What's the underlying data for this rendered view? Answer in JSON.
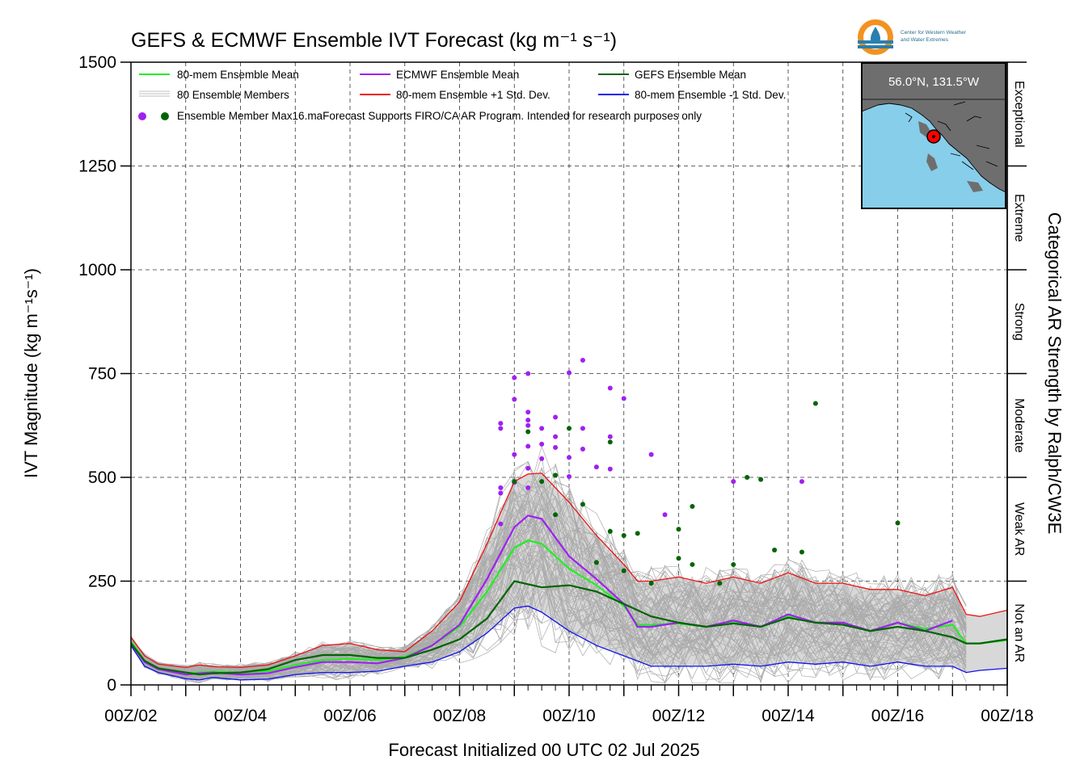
{
  "title": "GEFS & ECMWF Ensemble IVT Forecast (kg m⁻¹ s⁻¹)",
  "colors": {
    "mean80": "#22ee22",
    "ecmwf": "#a020f0",
    "gefs": "#006400",
    "plus1sd": "#ee1111",
    "minus1sd": "#1111ee",
    "members": "#aaaaaa",
    "map_ocean": "#87ceeb",
    "map_land": "#6e6e6e",
    "marker": "#ff0000"
  },
  "logo": {
    "icon": "water-drop-logo-icon",
    "line1": "Center for Western Weather",
    "line2": "and Water Extremes"
  },
  "inset_map": {
    "label": "56.0°N, 131.5°W",
    "marker_icon": "location-marker-icon"
  },
  "right_axis_label": "Categorical AR Strength by Ralph/CW3E",
  "categories": [
    {
      "label": "Not an AR",
      "from": 0,
      "to": 250
    },
    {
      "label": "Weak AR",
      "from": 250,
      "to": 500
    },
    {
      "label": "Moderate",
      "from": 500,
      "to": 750
    },
    {
      "label": "Strong",
      "from": 750,
      "to": 1000
    },
    {
      "label": "Extreme",
      "from": 1000,
      "to": 1250
    },
    {
      "label": "Exceptional",
      "from": 1250,
      "to": 1500
    }
  ],
  "legend": {
    "mean80": "80-mem Ensemble Mean",
    "ecmwf": "ECMWF Ensemble Mean",
    "gefs": "GEFS Ensemble Mean",
    "members": "80 Ensemble Members",
    "plus1sd": "80-mem Ensemble +1 Std. Dev.",
    "minus1sd": "80-mem Ensemble -1 Std. Dev.",
    "max": "Ensemble Member Max16.maForecast Supports FIRO/CA AR Program. Intended for research purposes only"
  },
  "chart_data": {
    "type": "line",
    "title": "GEFS & ECMWF Ensemble IVT Forecast (kg m⁻¹ s⁻¹)",
    "xlabel": "Forecast Initialized 00 UTC 02 Jul 2025",
    "ylabel": "IVT Magnitude (kg m⁻¹s⁻¹)",
    "xlim_days": [
      2,
      18
    ],
    "ylim": [
      0,
      1500
    ],
    "yticks": [
      0,
      250,
      500,
      750,
      1000,
      1250,
      1500
    ],
    "xtick_labels": [
      "00Z/02",
      "00Z/04",
      "00Z/06",
      "00Z/08",
      "00Z/10",
      "00Z/12",
      "00Z/14",
      "00Z/16",
      "00Z/18"
    ],
    "grid": true,
    "legend_position": "top-left",
    "series": [
      {
        "name": "80-mem Ensemble Mean",
        "points": [
          [
            2.0,
            105
          ],
          [
            2.25,
            58
          ],
          [
            2.5,
            40
          ],
          [
            3.0,
            28
          ],
          [
            3.25,
            30
          ],
          [
            3.5,
            32
          ],
          [
            4.0,
            30
          ],
          [
            4.5,
            33
          ],
          [
            5.0,
            48
          ],
          [
            5.5,
            60
          ],
          [
            6.0,
            63
          ],
          [
            6.5,
            60
          ],
          [
            7.0,
            68
          ],
          [
            7.5,
            95
          ],
          [
            8.0,
            140
          ],
          [
            8.5,
            225
          ],
          [
            9.0,
            330
          ],
          [
            9.25,
            348
          ],
          [
            9.5,
            340
          ],
          [
            10.0,
            280
          ],
          [
            10.5,
            240
          ],
          [
            11.0,
            190
          ],
          [
            11.25,
            145
          ],
          [
            11.5,
            145
          ],
          [
            12.0,
            148
          ],
          [
            12.5,
            140
          ],
          [
            13.0,
            150
          ],
          [
            13.5,
            140
          ],
          [
            14.0,
            165
          ],
          [
            14.5,
            150
          ],
          [
            15.0,
            145
          ],
          [
            15.5,
            130
          ],
          [
            16.0,
            150
          ],
          [
            16.5,
            135
          ],
          [
            17.0,
            145
          ],
          [
            17.25,
            100
          ],
          [
            17.5,
            100
          ],
          [
            18.0,
            108
          ]
        ]
      },
      {
        "name": "ECMWF Ensemble Mean",
        "points": [
          [
            2.0,
            100
          ],
          [
            2.25,
            55
          ],
          [
            2.5,
            38
          ],
          [
            3.0,
            25
          ],
          [
            3.25,
            28
          ],
          [
            3.5,
            30
          ],
          [
            4.0,
            25
          ],
          [
            4.5,
            28
          ],
          [
            5.0,
            43
          ],
          [
            5.5,
            55
          ],
          [
            6.0,
            55
          ],
          [
            6.5,
            52
          ],
          [
            7.0,
            65
          ],
          [
            7.5,
            95
          ],
          [
            8.0,
            145
          ],
          [
            8.5,
            255
          ],
          [
            9.0,
            380
          ],
          [
            9.25,
            408
          ],
          [
            9.5,
            400
          ],
          [
            10.0,
            310
          ],
          [
            10.5,
            255
          ],
          [
            11.0,
            195
          ],
          [
            11.25,
            140
          ],
          [
            11.5,
            140
          ],
          [
            12.0,
            150
          ],
          [
            12.5,
            140
          ],
          [
            13.0,
            155
          ],
          [
            13.5,
            140
          ],
          [
            14.0,
            170
          ],
          [
            14.5,
            150
          ],
          [
            15.0,
            150
          ],
          [
            15.5,
            130
          ],
          [
            16.0,
            150
          ],
          [
            16.5,
            130
          ],
          [
            17.0,
            155
          ]
        ]
      },
      {
        "name": "GEFS Ensemble Mean",
        "points": [
          [
            2.0,
            100
          ],
          [
            2.25,
            58
          ],
          [
            2.5,
            40
          ],
          [
            3.0,
            30
          ],
          [
            3.25,
            25
          ],
          [
            3.5,
            28
          ],
          [
            4.0,
            30
          ],
          [
            4.5,
            38
          ],
          [
            5.0,
            60
          ],
          [
            5.5,
            72
          ],
          [
            6.0,
            72
          ],
          [
            6.5,
            65
          ],
          [
            7.0,
            65
          ],
          [
            7.5,
            85
          ],
          [
            8.0,
            110
          ],
          [
            8.5,
            160
          ],
          [
            9.0,
            250
          ],
          [
            9.5,
            235
          ],
          [
            10.0,
            240
          ],
          [
            10.5,
            225
          ],
          [
            11.0,
            195
          ],
          [
            11.5,
            165
          ],
          [
            12.0,
            150
          ],
          [
            12.5,
            140
          ],
          [
            13.0,
            148
          ],
          [
            13.5,
            140
          ],
          [
            14.0,
            162
          ],
          [
            14.5,
            150
          ],
          [
            15.0,
            145
          ],
          [
            15.5,
            130
          ],
          [
            16.0,
            140
          ],
          [
            16.5,
            130
          ],
          [
            17.0,
            115
          ],
          [
            17.25,
            100
          ],
          [
            17.5,
            100
          ],
          [
            18.0,
            110
          ]
        ]
      },
      {
        "name": "80-mem Ensemble +1 Std. Dev.",
        "points": [
          [
            2.0,
            115
          ],
          [
            2.25,
            70
          ],
          [
            2.5,
            50
          ],
          [
            3.0,
            42
          ],
          [
            3.25,
            48
          ],
          [
            3.5,
            44
          ],
          [
            4.0,
            42
          ],
          [
            4.5,
            48
          ],
          [
            5.0,
            70
          ],
          [
            5.5,
            95
          ],
          [
            6.0,
            100
          ],
          [
            6.5,
            85
          ],
          [
            7.0,
            80
          ],
          [
            7.5,
            130
          ],
          [
            8.0,
            200
          ],
          [
            8.5,
            340
          ],
          [
            9.0,
            490
          ],
          [
            9.25,
            508
          ],
          [
            9.5,
            510
          ],
          [
            10.0,
            440
          ],
          [
            10.5,
            360
          ],
          [
            11.0,
            290
          ],
          [
            11.25,
            250
          ],
          [
            11.5,
            250
          ],
          [
            12.0,
            260
          ],
          [
            12.5,
            245
          ],
          [
            13.0,
            260
          ],
          [
            13.5,
            245
          ],
          [
            14.0,
            270
          ],
          [
            14.5,
            245
          ],
          [
            15.0,
            245
          ],
          [
            15.5,
            230
          ],
          [
            16.0,
            230
          ],
          [
            16.5,
            215
          ],
          [
            17.0,
            235
          ],
          [
            17.25,
            170
          ],
          [
            17.5,
            165
          ],
          [
            18.0,
            180
          ]
        ]
      },
      {
        "name": "80-mem Ensemble -1 Std. Dev.",
        "points": [
          [
            2.0,
            95
          ],
          [
            2.25,
            45
          ],
          [
            2.5,
            30
          ],
          [
            3.0,
            15
          ],
          [
            3.25,
            12
          ],
          [
            3.5,
            18
          ],
          [
            4.0,
            12
          ],
          [
            4.5,
            14
          ],
          [
            5.0,
            25
          ],
          [
            5.5,
            30
          ],
          [
            6.0,
            30
          ],
          [
            6.5,
            33
          ],
          [
            7.0,
            45
          ],
          [
            7.5,
            55
          ],
          [
            8.0,
            80
          ],
          [
            8.5,
            125
          ],
          [
            9.0,
            185
          ],
          [
            9.25,
            190
          ],
          [
            9.5,
            175
          ],
          [
            10.0,
            130
          ],
          [
            10.5,
            95
          ],
          [
            11.0,
            70
          ],
          [
            11.5,
            45
          ],
          [
            12.0,
            45
          ],
          [
            12.5,
            45
          ],
          [
            13.0,
            50
          ],
          [
            13.5,
            45
          ],
          [
            14.0,
            55
          ],
          [
            14.5,
            50
          ],
          [
            15.0,
            55
          ],
          [
            15.5,
            45
          ],
          [
            16.0,
            55
          ],
          [
            16.5,
            45
          ],
          [
            17.0,
            45
          ],
          [
            17.25,
            30
          ],
          [
            17.5,
            35
          ],
          [
            18.0,
            40
          ]
        ]
      }
    ],
    "max_points": {
      "ECMWF": [
        [
          8.75,
          630
        ],
        [
          8.75,
          618
        ],
        [
          8.75,
          475
        ],
        [
          8.75,
          462
        ],
        [
          8.75,
          388
        ],
        [
          9.0,
          740
        ],
        [
          9.0,
          688
        ],
        [
          9.0,
          555
        ],
        [
          9.0,
          488
        ],
        [
          9.25,
          750
        ],
        [
          9.25,
          657
        ],
        [
          9.25,
          638
        ],
        [
          9.25,
          625
        ],
        [
          9.25,
          575
        ],
        [
          9.25,
          522
        ],
        [
          9.25,
          475
        ],
        [
          9.5,
          618
        ],
        [
          9.5,
          580
        ],
        [
          9.5,
          545
        ],
        [
          9.75,
          645
        ],
        [
          9.75,
          598
        ],
        [
          9.75,
          572
        ],
        [
          10.0,
          752
        ],
        [
          10.0,
          548
        ],
        [
          10.0,
          502
        ],
        [
          10.25,
          782
        ],
        [
          10.25,
          618
        ],
        [
          10.25,
          568
        ],
        [
          10.5,
          525
        ],
        [
          10.75,
          715
        ],
        [
          10.75,
          598
        ],
        [
          10.75,
          520
        ],
        [
          11.0,
          690
        ],
        [
          11.5,
          555
        ],
        [
          11.75,
          410
        ],
        [
          13.0,
          490
        ],
        [
          14.25,
          490
        ]
      ],
      "GEFS": [
        [
          9.0,
          490
        ],
        [
          9.25,
          610
        ],
        [
          9.5,
          490
        ],
        [
          9.75,
          505
        ],
        [
          9.75,
          410
        ],
        [
          10.0,
          618
        ],
        [
          10.25,
          435
        ],
        [
          10.5,
          295
        ],
        [
          10.75,
          585
        ],
        [
          10.75,
          370
        ],
        [
          11.0,
          275
        ],
        [
          11.0,
          360
        ],
        [
          11.25,
          365
        ],
        [
          11.5,
          245
        ],
        [
          12.0,
          305
        ],
        [
          12.0,
          375
        ],
        [
          12.25,
          290
        ],
        [
          12.25,
          430
        ],
        [
          12.75,
          245
        ],
        [
          13.0,
          290
        ],
        [
          13.25,
          500
        ],
        [
          13.5,
          495
        ],
        [
          13.75,
          325
        ],
        [
          14.25,
          320
        ],
        [
          14.5,
          678
        ],
        [
          16.0,
          390
        ]
      ]
    }
  }
}
